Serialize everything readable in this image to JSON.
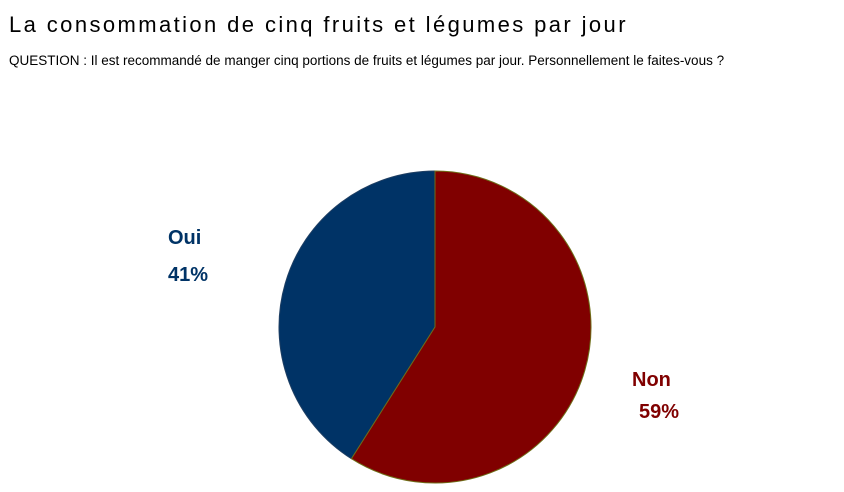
{
  "title": "La consommation de cinq fruits et légumes par jour",
  "question": "QUESTION : Il est recommandé de manger cinq portions de fruits et légumes par jour. Personnellement le faites-vous ?",
  "chart_data": {
    "type": "pie",
    "slices": [
      {
        "label": "Oui",
        "value": 41,
        "value_label": "41%",
        "color": "#003366"
      },
      {
        "label": "Non",
        "value": 59,
        "value_label": "59%",
        "color": "#800000"
      }
    ],
    "start": "top",
    "direction": "counterclockwise",
    "legend": "none"
  }
}
